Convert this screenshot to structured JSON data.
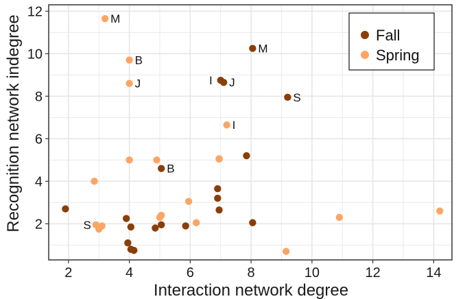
{
  "chart_data": {
    "type": "scatter",
    "xlabel": "Interaction network degree",
    "ylabel": "Recognition network indegree",
    "xlim": [
      1.35,
      14.6
    ],
    "ylim": [
      0.3,
      12.3
    ],
    "xticks": [
      2,
      4,
      6,
      8,
      10,
      12,
      14
    ],
    "yticks": [
      2,
      4,
      6,
      8,
      10,
      12
    ],
    "grid": true,
    "legend_position": "top-right",
    "colors": {
      "Fall": "#8a3e09",
      "Spring": "#fca565",
      "grid": "#e6e6e6",
      "frame": "#333333"
    },
    "series": [
      {
        "name": "Fall",
        "points": [
          {
            "x": 1.9,
            "y": 2.7
          },
          {
            "x": 3.9,
            "y": 2.25
          },
          {
            "x": 4.05,
            "y": 1.85
          },
          {
            "x": 3.95,
            "y": 1.1
          },
          {
            "x": 4.05,
            "y": 0.8
          },
          {
            "x": 4.15,
            "y": 0.75
          },
          {
            "x": 4.85,
            "y": 1.8
          },
          {
            "x": 5.05,
            "y": 1.95
          },
          {
            "x": 5.85,
            "y": 1.9
          },
          {
            "x": 5.05,
            "y": 4.6,
            "label": "B"
          },
          {
            "x": 6.9,
            "y": 3.65
          },
          {
            "x": 6.9,
            "y": 3.2
          },
          {
            "x": 6.95,
            "y": 2.65
          },
          {
            "x": 6.95,
            "y": 5.05
          },
          {
            "x": 7.0,
            "y": 8.75,
            "label": "I"
          },
          {
            "x": 7.1,
            "y": 8.65,
            "label": "J"
          },
          {
            "x": 7.85,
            "y": 5.2
          },
          {
            "x": 8.05,
            "y": 10.25,
            "label": "M"
          },
          {
            "x": 8.05,
            "y": 2.05
          },
          {
            "x": 9.2,
            "y": 7.95,
            "label": "S"
          }
        ]
      },
      {
        "name": "Spring",
        "points": [
          {
            "x": 2.85,
            "y": 4.0
          },
          {
            "x": 2.9,
            "y": 1.95,
            "label": "S"
          },
          {
            "x": 3.0,
            "y": 1.75
          },
          {
            "x": 3.1,
            "y": 1.9
          },
          {
            "x": 3.2,
            "y": 11.65,
            "label": "M"
          },
          {
            "x": 4.0,
            "y": 9.7,
            "label": "B"
          },
          {
            "x": 4.0,
            "y": 8.6,
            "label": "J"
          },
          {
            "x": 4.0,
            "y": 5.0
          },
          {
            "x": 4.9,
            "y": 5.0
          },
          {
            "x": 5.0,
            "y": 2.3
          },
          {
            "x": 5.05,
            "y": 2.4
          },
          {
            "x": 5.95,
            "y": 3.05
          },
          {
            "x": 6.2,
            "y": 2.05
          },
          {
            "x": 6.95,
            "y": 5.05
          },
          {
            "x": 7.2,
            "y": 6.65,
            "label": "I"
          },
          {
            "x": 9.15,
            "y": 0.7
          },
          {
            "x": 10.9,
            "y": 2.3
          },
          {
            "x": 14.2,
            "y": 2.6
          }
        ]
      }
    ]
  }
}
